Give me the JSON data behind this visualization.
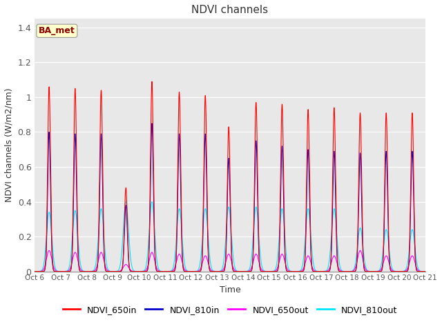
{
  "title": "NDVI channels",
  "xlabel": "Time",
  "ylabel": "NDVI channels (W/m2/nm)",
  "ylim": [
    0,
    1.45
  ],
  "yticks": [
    0.0,
    0.2,
    0.4,
    0.6,
    0.8,
    1.0,
    1.2,
    1.4
  ],
  "fig_bg_color": "#ffffff",
  "plot_bg_color": "#e8e8e8",
  "annotation_text": "BA_met",
  "annotation_color": "#8b0000",
  "annotation_bg": "#ffffcc",
  "line_colors": {
    "NDVI_650in": "#ff0000",
    "NDVI_810in": "#0000cc",
    "NDVI_650out": "#ff00ff",
    "NDVI_810out": "#00e5ff"
  },
  "num_days": 15,
  "start_day": 6,
  "peaks_650in": [
    1.06,
    1.05,
    1.04,
    0.48,
    1.09,
    1.03,
    1.01,
    0.83,
    0.97,
    0.96,
    0.93,
    0.94,
    0.91,
    0.91,
    0.91
  ],
  "peaks_810in": [
    0.8,
    0.79,
    0.79,
    0.38,
    0.85,
    0.79,
    0.79,
    0.65,
    0.75,
    0.72,
    0.7,
    0.69,
    0.68,
    0.69,
    0.69
  ],
  "peaks_650out": [
    0.12,
    0.11,
    0.11,
    0.04,
    0.11,
    0.1,
    0.09,
    0.1,
    0.1,
    0.1,
    0.09,
    0.09,
    0.12,
    0.09,
    0.09
  ],
  "peaks_810out": [
    0.34,
    0.35,
    0.36,
    0.4,
    0.4,
    0.36,
    0.36,
    0.37,
    0.37,
    0.36,
    0.36,
    0.36,
    0.25,
    0.24,
    0.24
  ],
  "peak_offsets": [
    0.55,
    0.55,
    0.55,
    0.5,
    0.5,
    0.55,
    0.55,
    0.45,
    0.5,
    0.5,
    0.5,
    0.5,
    0.5,
    0.5,
    0.5
  ]
}
